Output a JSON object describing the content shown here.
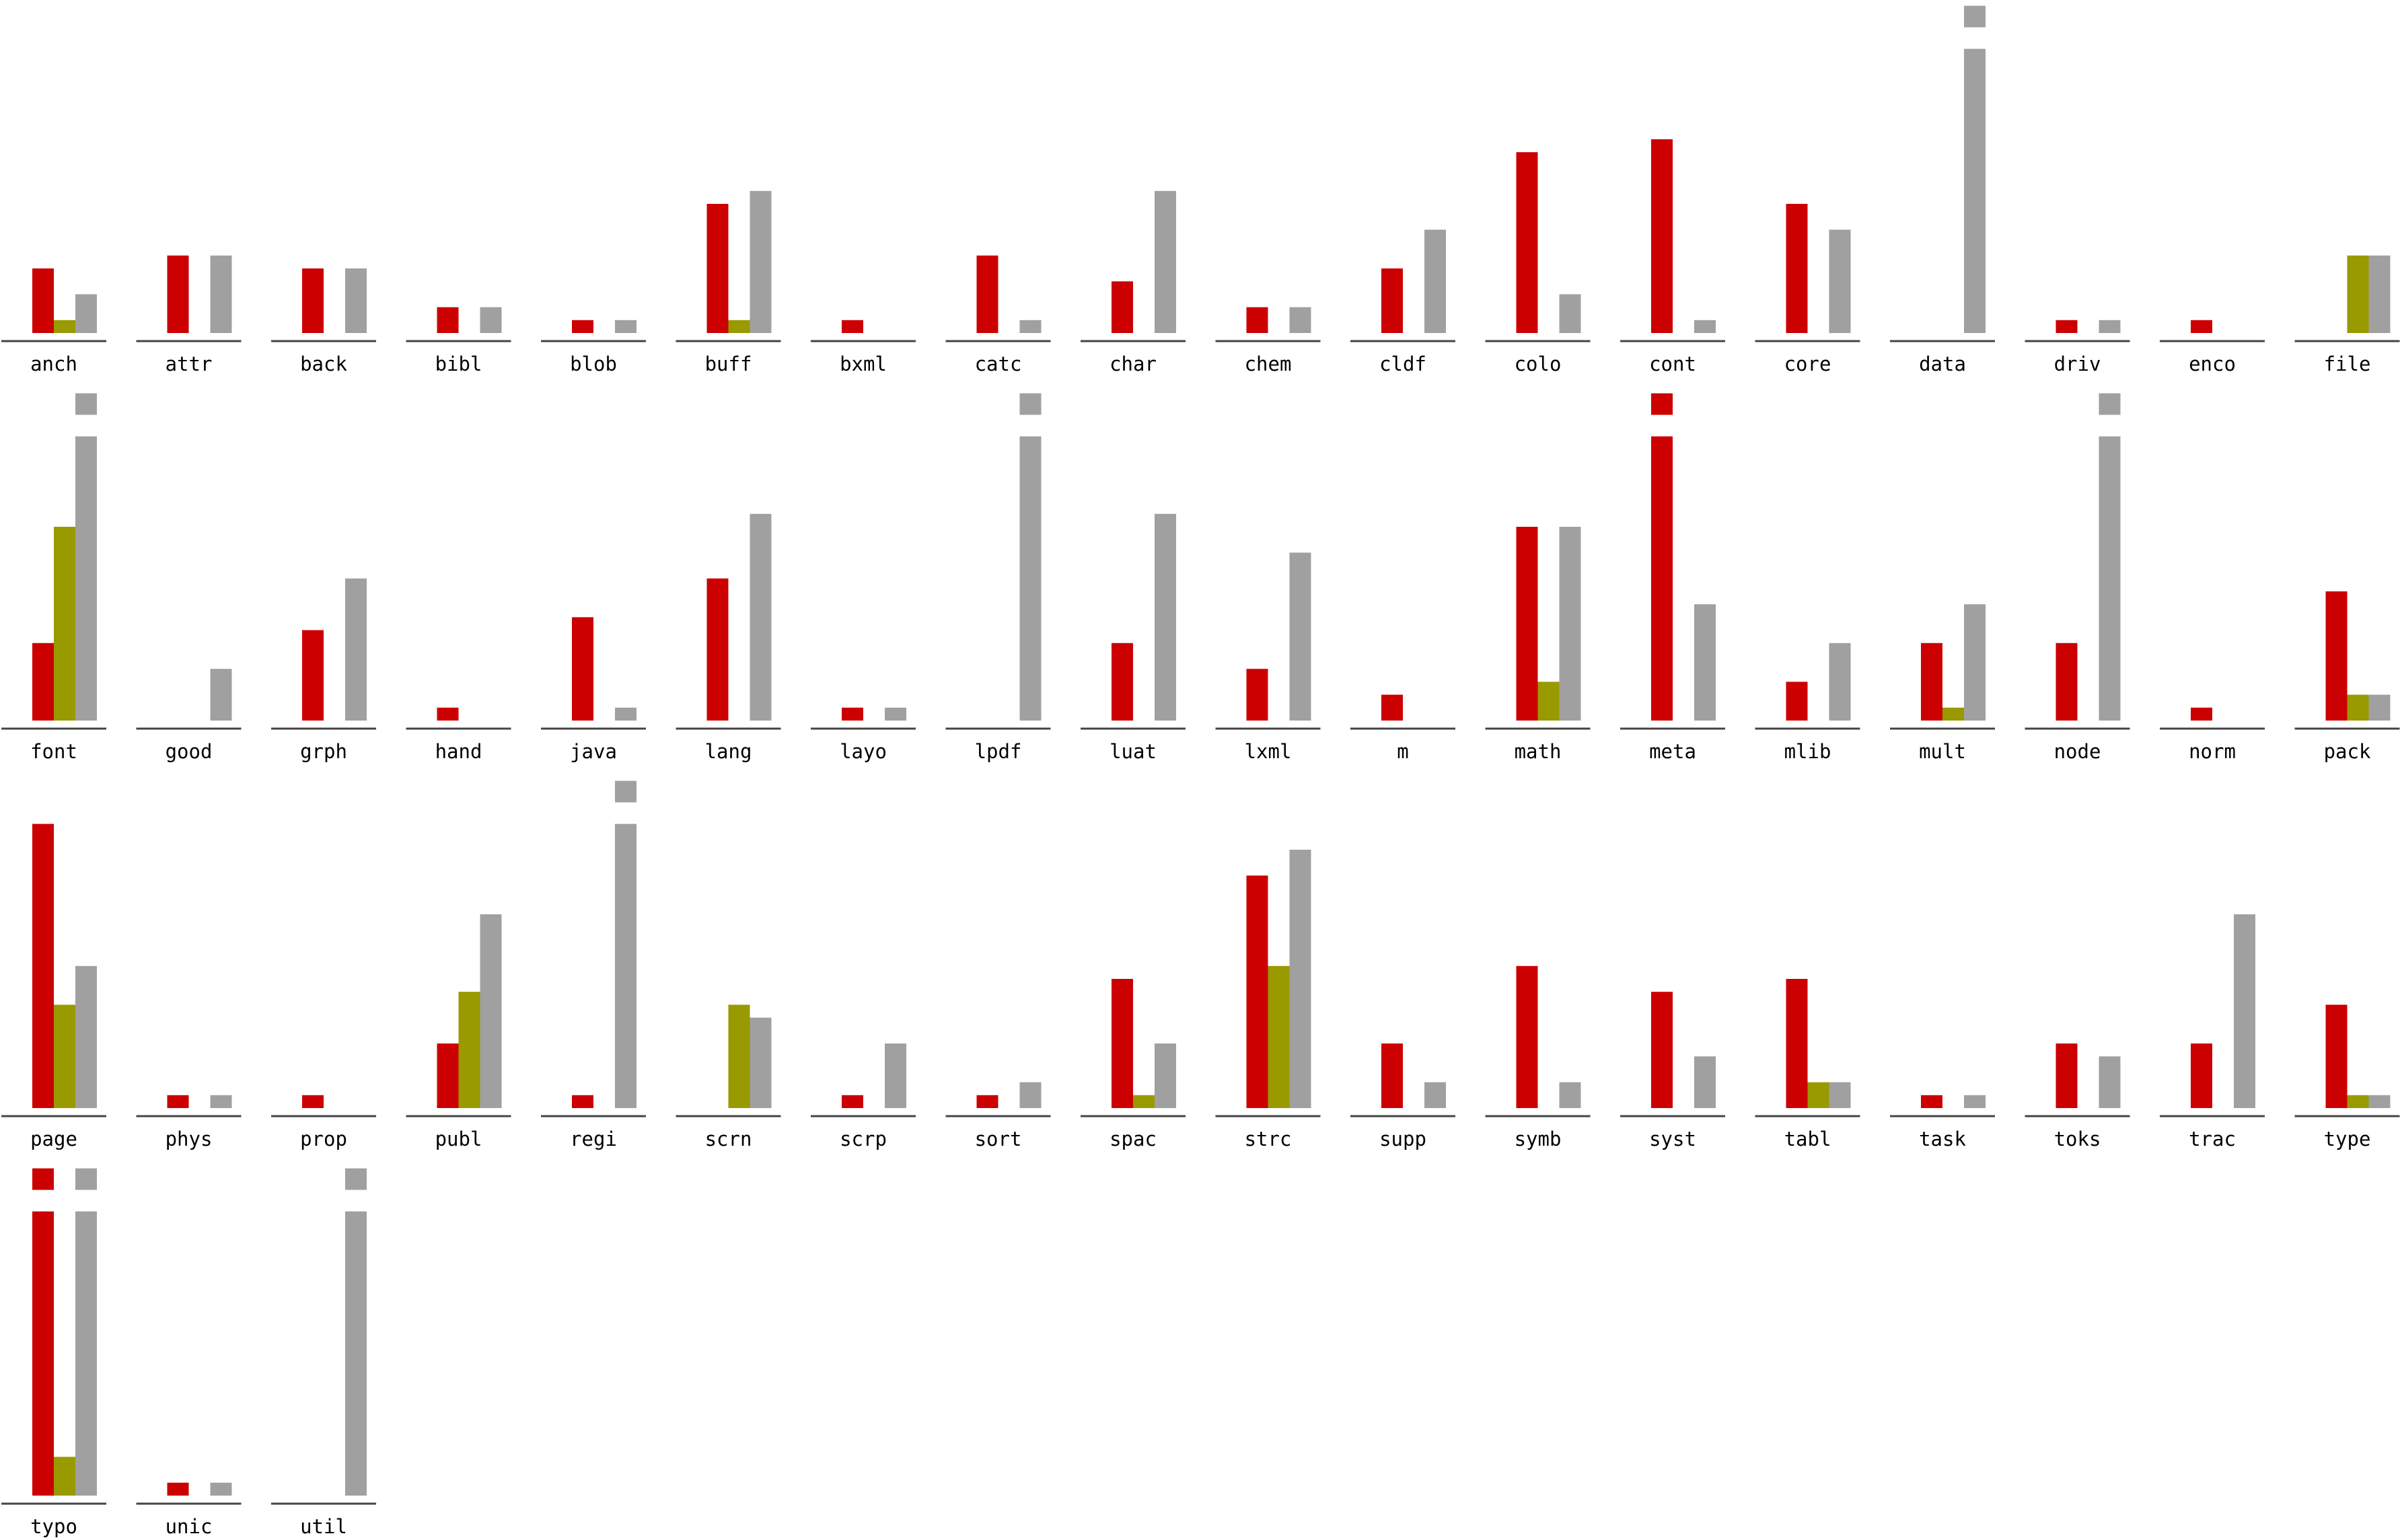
{
  "chart_data": {
    "type": "bar",
    "layout": "small-multiples",
    "columns": 18,
    "units": 22,
    "colors": {
      "series_a": "#cc0000",
      "series_b": "#999900",
      "series_c": "#a0a0a0",
      "baseline": "#444444"
    },
    "panels": [
      {
        "label": "anch",
        "a": 5,
        "b": 1,
        "c": 3
      },
      {
        "label": "attr",
        "a": 6,
        "b": 0,
        "c": 6
      },
      {
        "label": "back",
        "a": 5,
        "b": 0,
        "c": 5
      },
      {
        "label": "bibl",
        "a": 2,
        "b": 0,
        "c": 2
      },
      {
        "label": "blob",
        "a": 1,
        "b": 0,
        "c": 1
      },
      {
        "label": "buff",
        "a": 10,
        "b": 1,
        "c": 11
      },
      {
        "label": "bxml",
        "a": 1,
        "b": 0,
        "c": 0
      },
      {
        "label": "catc",
        "a": 6,
        "b": 0,
        "c": 1
      },
      {
        "label": "char",
        "a": 4,
        "b": 0,
        "c": 11
      },
      {
        "label": "chem",
        "a": 2,
        "b": 0,
        "c": 2
      },
      {
        "label": "cldf",
        "a": 5,
        "b": 0,
        "c": 8
      },
      {
        "label": "colo",
        "a": 14,
        "b": 0,
        "c": 3
      },
      {
        "label": "cont",
        "a": 15,
        "b": 0,
        "c": 1
      },
      {
        "label": "core",
        "a": 10,
        "b": 0,
        "c": 8
      },
      {
        "label": "data",
        "a": 0,
        "b": 0,
        "c": 28
      },
      {
        "label": "driv",
        "a": 1,
        "b": 0,
        "c": 1
      },
      {
        "label": "enco",
        "a": 1,
        "b": 0,
        "c": 0
      },
      {
        "label": "file",
        "a": 0,
        "b": 6,
        "c": 6
      },
      {
        "label": "font",
        "a": 6,
        "b": 15,
        "c": 25
      },
      {
        "label": "good",
        "a": 0,
        "b": 0,
        "c": 4
      },
      {
        "label": "grph",
        "a": 7,
        "b": 0,
        "c": 11
      },
      {
        "label": "hand",
        "a": 1,
        "b": 0,
        "c": 0
      },
      {
        "label": "java",
        "a": 8,
        "b": 0,
        "c": 1
      },
      {
        "label": "lang",
        "a": 11,
        "b": 0,
        "c": 16
      },
      {
        "label": "layo",
        "a": 1,
        "b": 0,
        "c": 1
      },
      {
        "label": "lpdf",
        "a": 0,
        "b": 0,
        "c": 26
      },
      {
        "label": "luat",
        "a": 6,
        "b": 0,
        "c": 16
      },
      {
        "label": "lxml",
        "a": 4,
        "b": 0,
        "c": 13
      },
      {
        "label": "m",
        "a": 2,
        "b": 0,
        "c": 0
      },
      {
        "label": "math",
        "a": 15,
        "b": 3,
        "c": 15
      },
      {
        "label": "meta",
        "a": 24,
        "b": 0,
        "c": 9
      },
      {
        "label": "mlib",
        "a": 3,
        "b": 0,
        "c": 6
      },
      {
        "label": "mult",
        "a": 6,
        "b": 1,
        "c": 9
      },
      {
        "label": "node",
        "a": 6,
        "b": 0,
        "c": 24
      },
      {
        "label": "norm",
        "a": 1,
        "b": 0,
        "c": 0
      },
      {
        "label": "pack",
        "a": 10,
        "b": 2,
        "c": 2
      },
      {
        "label": "page",
        "a": 22,
        "b": 8,
        "c": 11
      },
      {
        "label": "phys",
        "a": 1,
        "b": 0,
        "c": 1
      },
      {
        "label": "prop",
        "a": 1,
        "b": 0,
        "c": 0
      },
      {
        "label": "publ",
        "a": 5,
        "b": 9,
        "c": 15
      },
      {
        "label": "regi",
        "a": 1,
        "b": 0,
        "c": 28
      },
      {
        "label": "scrn",
        "a": 0,
        "b": 8,
        "c": 7
      },
      {
        "label": "scrp",
        "a": 1,
        "b": 0,
        "c": 5
      },
      {
        "label": "sort",
        "a": 1,
        "b": 0,
        "c": 2
      },
      {
        "label": "spac",
        "a": 10,
        "b": 1,
        "c": 5
      },
      {
        "label": "strc",
        "a": 18,
        "b": 11,
        "c": 20
      },
      {
        "label": "supp",
        "a": 5,
        "b": 0,
        "c": 2
      },
      {
        "label": "symb",
        "a": 11,
        "b": 0,
        "c": 2
      },
      {
        "label": "syst",
        "a": 9,
        "b": 0,
        "c": 4
      },
      {
        "label": "tabl",
        "a": 10,
        "b": 2,
        "c": 2
      },
      {
        "label": "task",
        "a": 1,
        "b": 0,
        "c": 1
      },
      {
        "label": "toks",
        "a": 5,
        "b": 0,
        "c": 4
      },
      {
        "label": "trac",
        "a": 5,
        "b": 0,
        "c": 15
      },
      {
        "label": "type",
        "a": 8,
        "b": 1,
        "c": 1
      },
      {
        "label": "typo",
        "a": 24,
        "b": 3,
        "c": 24
      },
      {
        "label": "unic",
        "a": 1,
        "b": 0,
        "c": 1
      },
      {
        "label": "util",
        "a": 0,
        "b": 0,
        "c": 26
      }
    ]
  }
}
